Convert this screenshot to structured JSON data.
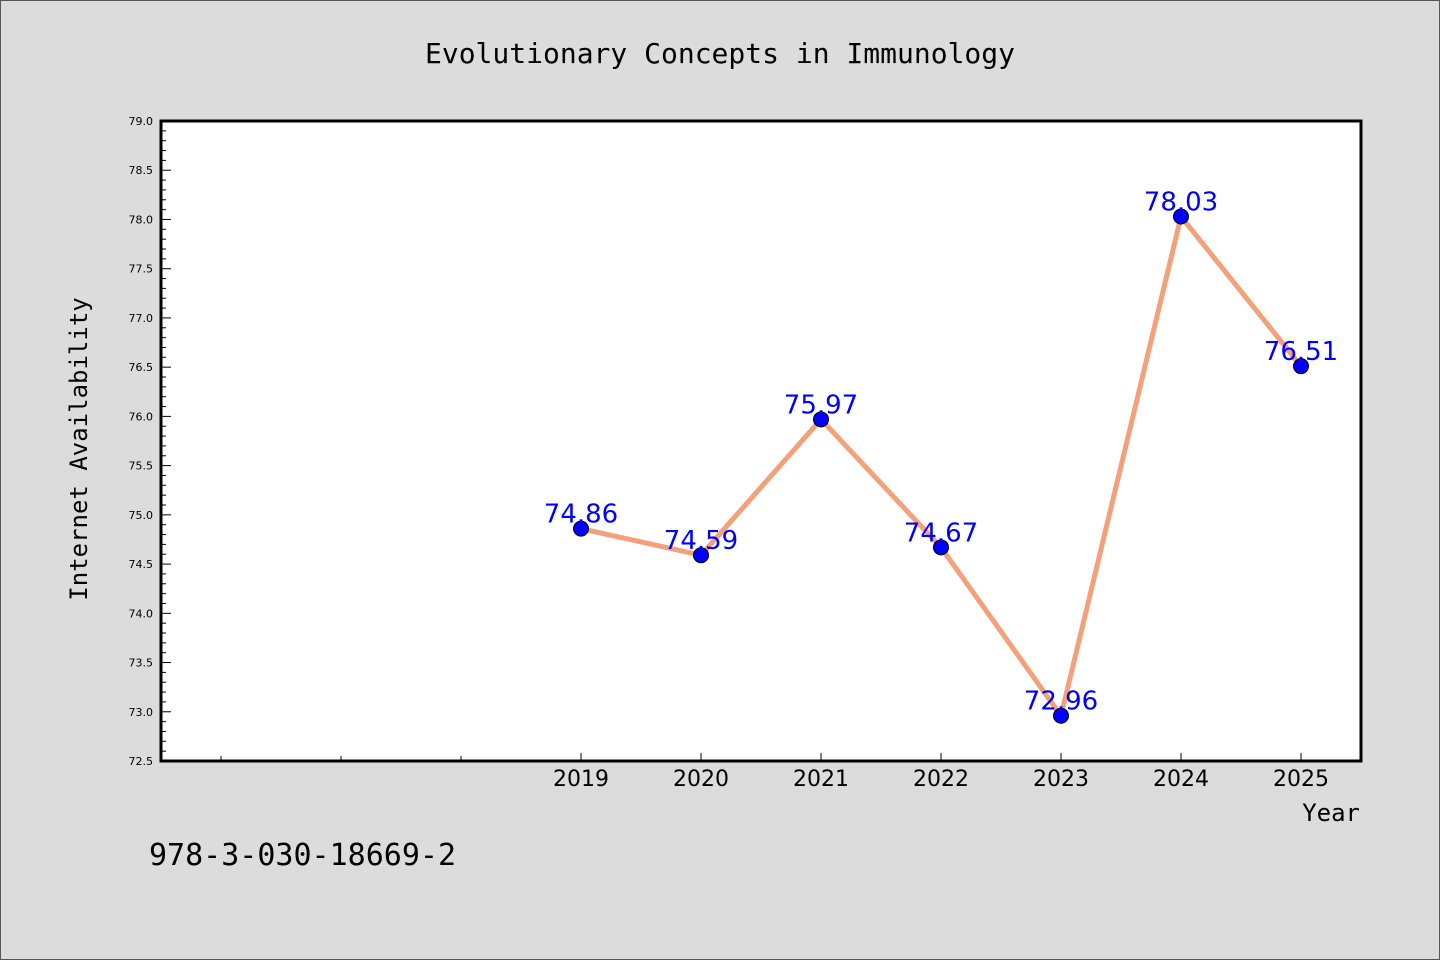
{
  "chart_data": {
    "type": "line",
    "title": "Evolutionary Concepts in Immunology",
    "xlabel": "Year",
    "ylabel": "Internet Availability",
    "categories": [
      "2019",
      "2020",
      "2021",
      "2022",
      "2023",
      "2024",
      "2025"
    ],
    "values": [
      74.86,
      74.59,
      75.97,
      74.67,
      72.96,
      78.03,
      76.51
    ],
    "data_labels": [
      "74.86",
      "74.59",
      "75.97",
      "74.67",
      "72.96",
      "78.03",
      "76.51"
    ],
    "ylim": [
      72.5,
      79.0
    ],
    "yticks": [
      "72.5",
      "73.0",
      "73.5",
      "74.0",
      "74.5",
      "75.0",
      "75.5",
      "76.0",
      "76.5",
      "77.0",
      "77.5",
      "78.0",
      "78.5",
      "79.0"
    ],
    "grid": false,
    "legend": "none",
    "line_color": "#f4a07a",
    "marker_color": "#0000ff",
    "label_color": "#0000ff",
    "background_color": "#dcdcdc",
    "plot_background": "#ffffff"
  },
  "footer": {
    "isbn": "978-3-030-18669-2"
  }
}
